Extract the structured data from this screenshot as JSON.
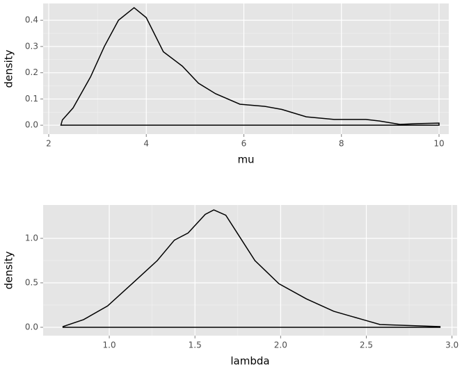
{
  "chart_data": [
    {
      "type": "density",
      "x_label": "mu",
      "y_label": "density",
      "color": "#000000",
      "background": "#e5e5e5",
      "grid": true,
      "x": [
        2.25,
        2.28,
        2.5,
        2.86,
        3.14,
        3.43,
        3.75,
        4.0,
        4.35,
        4.74,
        5.07,
        5.42,
        5.92,
        6.42,
        6.78,
        7.28,
        7.85,
        8.5,
        8.78,
        9.2,
        9.56,
        10.0,
        10.0
      ],
      "values": [
        0,
        0.02,
        0.066,
        0.185,
        0.3,
        0.4,
        0.448,
        0.41,
        0.28,
        0.225,
        0.16,
        0.12,
        0.08,
        0.072,
        0.06,
        0.032,
        0.022,
        0.022,
        0.016,
        0.003,
        0.006,
        0.008,
        0
      ],
      "xlim": [
        1.886,
        10.2
      ],
      "xticks": [
        2,
        4,
        6,
        8,
        10
      ],
      "ylim": [
        -0.034,
        0.464
      ],
      "yticks": [
        {
          "value": 0,
          "label": "0.0"
        },
        0.1,
        0.2,
        0.3,
        0.4
      ]
    },
    {
      "type": "density",
      "x_label": "lambda",
      "y_label": "density",
      "color": "#000000",
      "background": "#e5e5e5",
      "grid": true,
      "x": [
        0.73,
        0.73,
        0.85,
        0.99,
        1.15,
        1.28,
        1.38,
        1.46,
        1.56,
        1.61,
        1.68,
        1.76,
        1.85,
        1.99,
        2.15,
        2.31,
        2.48,
        2.58,
        2.8,
        2.93,
        2.93
      ],
      "values": [
        0,
        0.008,
        0.086,
        0.24,
        0.52,
        0.75,
        0.98,
        1.06,
        1.27,
        1.32,
        1.26,
        1.02,
        0.75,
        0.49,
        0.32,
        0.18,
        0.086,
        0.031,
        0.016,
        0.008,
        0
      ],
      "xlim": [
        0.614,
        3.03
      ],
      "xticks": [
        {
          "value": 1,
          "label": "1.0"
        },
        1.5,
        {
          "value": 2,
          "label": "2.0"
        },
        2.5,
        {
          "value": 3,
          "label": "3.0"
        }
      ],
      "ylim": [
        -0.094,
        1.375
      ],
      "yticks": [
        {
          "value": 0,
          "label": "0.0"
        },
        0.5,
        {
          "value": 1,
          "label": "1.0"
        }
      ]
    }
  ]
}
